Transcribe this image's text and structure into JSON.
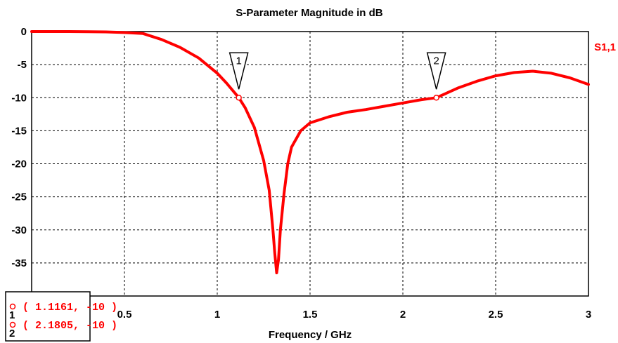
{
  "chart_data": {
    "type": "line",
    "title": "S-Parameter Magnitude in dB",
    "xlabel": "Frequency / GHz",
    "ylabel": "",
    "xlim": [
      0,
      3
    ],
    "ylim": [
      -40,
      0
    ],
    "x_ticks": [
      0.5,
      1,
      1.5,
      2,
      2.5,
      3
    ],
    "x_tick_labels": [
      "0.5",
      "1",
      "1.5",
      "2",
      "2.5",
      "3"
    ],
    "y_ticks": [
      0,
      -5,
      -10,
      -15,
      -20,
      -25,
      -30,
      -35
    ],
    "y_tick_labels": [
      "0",
      "-5",
      "-10",
      "-15",
      "-20",
      "-25",
      "-30",
      "-35"
    ],
    "y_tick_partial": "-40",
    "grid": true,
    "legend_position": "right",
    "series": [
      {
        "name": "S1,1",
        "color": "#ff0000",
        "x": [
          0,
          0.2,
          0.4,
          0.5,
          0.6,
          0.7,
          0.8,
          0.9,
          1.0,
          1.05,
          1.1161,
          1.15,
          1.2,
          1.25,
          1.28,
          1.3,
          1.31,
          1.32,
          1.33,
          1.34,
          1.36,
          1.38,
          1.4,
          1.45,
          1.5,
          1.6,
          1.7,
          1.8,
          1.9,
          2.0,
          2.1,
          2.1805,
          2.3,
          2.4,
          2.5,
          2.6,
          2.7,
          2.8,
          2.9,
          3.0
        ],
        "y": [
          0,
          0,
          -0.05,
          -0.15,
          -0.3,
          -1.2,
          -2.4,
          -4.0,
          -6.3,
          -7.8,
          -10.0,
          -11.5,
          -14.5,
          -19.5,
          -24.0,
          -30.0,
          -33.5,
          -36.5,
          -34.5,
          -30.0,
          -24.5,
          -20.0,
          -17.5,
          -15.0,
          -13.8,
          -12.9,
          -12.2,
          -11.8,
          -11.3,
          -10.8,
          -10.3,
          -10.0,
          -8.5,
          -7.5,
          -6.7,
          -6.2,
          -6.0,
          -6.3,
          -7.0,
          -8.0
        ]
      }
    ],
    "markers": [
      {
        "label": "1",
        "x": 1.1161,
        "y": -10,
        "readout": "( 1.1161, -10 )"
      },
      {
        "label": "2",
        "x": 2.1805,
        "y": -10,
        "readout": "( 2.1805, -10 )"
      }
    ]
  }
}
